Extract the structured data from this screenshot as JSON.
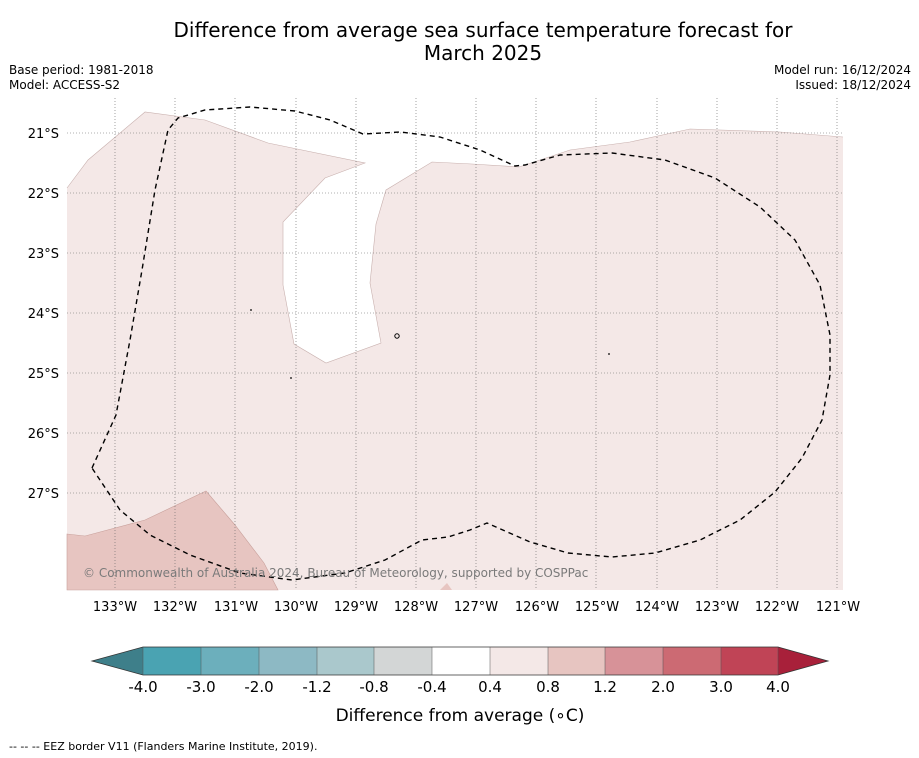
{
  "header": {
    "title_line1": "Difference from average sea surface temperature forecast for",
    "title_line2": "March 2025",
    "base_period": "Base period: 1981-2018",
    "model": "Model: ACCESS-S2",
    "model_run": "Model run: 16/12/2024",
    "issued": "Issued: 18/12/2024"
  },
  "map": {
    "latitude_labels": [
      "21°S",
      "22°S",
      "23°S",
      "24°S",
      "25°S",
      "26°S",
      "27°S"
    ],
    "longitude_labels": [
      "133°W",
      "132°W",
      "131°W",
      "130°W",
      "129°W",
      "128°W",
      "127°W",
      "126°W",
      "125°W",
      "124°W",
      "123°W",
      "122°W",
      "121°W"
    ],
    "copyright": "© Commonwealth of Australia 2024, Bureau of Meteorology, supported by COSPPac",
    "colors": {
      "range_0.4_0.8": "#f4e8e7",
      "range_0.8_1.2": "#e7c5c1",
      "range_-0.4_0.4": "#ffffff",
      "eez_border": "#000000"
    }
  },
  "colorbar": {
    "tick_labels": [
      "-4.0",
      "-3.0",
      "-2.0",
      "-1.2",
      "-0.8",
      "-0.4",
      "0.4",
      "0.8",
      "1.2",
      "2.0",
      "3.0",
      "4.0"
    ],
    "colors": [
      "#3e7f8a",
      "#4aa3b2",
      "#6cafbc",
      "#8db9c4",
      "#aac8cc",
      "#d3d6d6",
      "#ffffff",
      "#f4e8e7",
      "#e7c5c1",
      "#d79298",
      "#cc6a73",
      "#c04456",
      "#a8203a"
    ],
    "label": "Difference from average (",
    "label_unit": "∘C)"
  },
  "footnote": "--  --  -- EEZ border V11 (Flanders Marine Institute, 2019)."
}
